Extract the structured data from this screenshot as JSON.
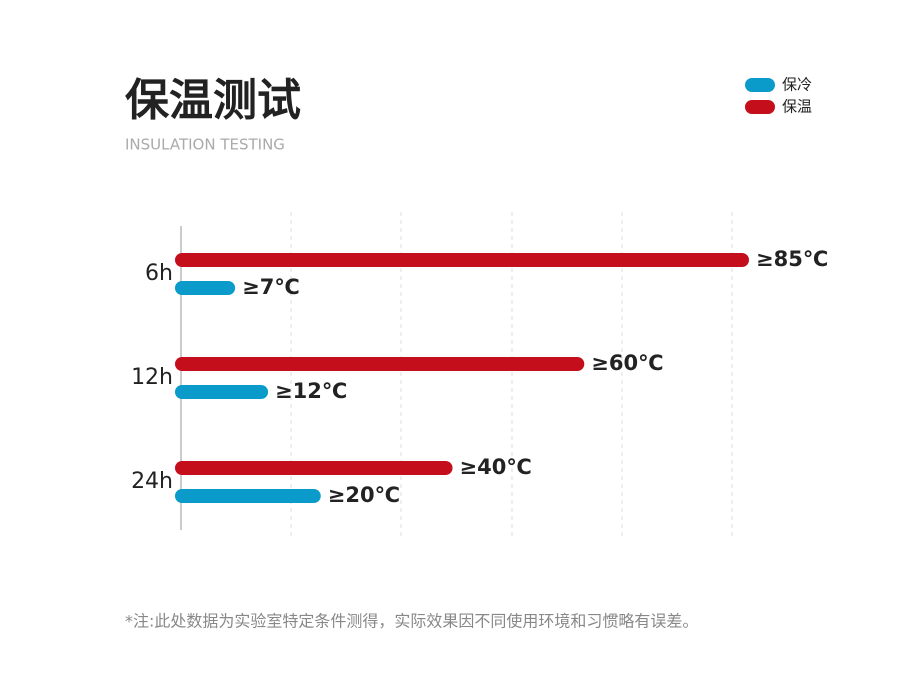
{
  "chart_data": {
    "type": "bar",
    "orientation": "horizontal",
    "title": "保温测试",
    "subtitle": "INSULATION TESTING",
    "categories": [
      "6h",
      "12h",
      "24h"
    ],
    "series": [
      {
        "name": "保冷",
        "color": "#0a9bcb",
        "values": [
          7,
          12,
          20
        ],
        "value_labels": [
          "≥7℃",
          "≥12℃",
          "≥20℃"
        ]
      },
      {
        "name": "保温",
        "color": "#c40e1c",
        "values": [
          85,
          60,
          40
        ],
        "value_labels": [
          "≥85℃",
          "≥60℃",
          "≥40℃"
        ]
      }
    ],
    "legend": "top-right",
    "grid": true,
    "footnote": "*注:此处数据为实验室特定条件测得，实际效果因不同使用环境和习惯略有误差。"
  }
}
